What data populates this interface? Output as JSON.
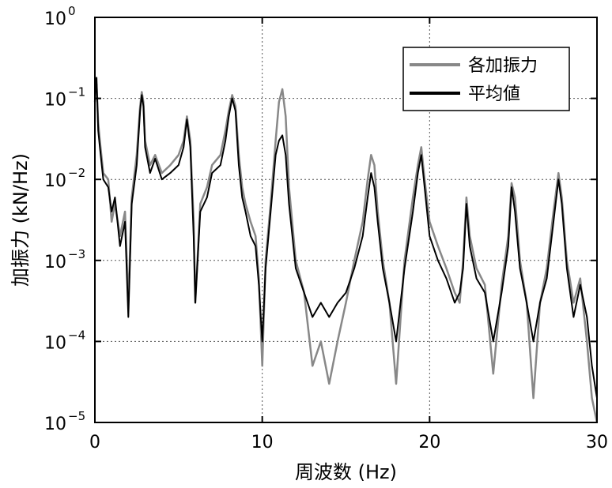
{
  "chart_data": {
    "type": "line",
    "title": "",
    "xlabel": "周波数 (Hz)",
    "ylabel": "加振力 (kN/Hz)",
    "xlim": [
      0,
      30
    ],
    "ylim": [
      1e-05,
      1
    ],
    "yscale": "log",
    "grid": true,
    "legend_position": "top-right",
    "x_ticks": [
      {
        "value": 0,
        "label": "0"
      },
      {
        "value": 10,
        "label": "10"
      },
      {
        "value": 20,
        "label": "20"
      },
      {
        "value": 30,
        "label": "30"
      }
    ],
    "y_ticks": [
      {
        "value": 1e-05,
        "base": "10",
        "exp": "−5"
      },
      {
        "value": 0.0001,
        "base": "10",
        "exp": "−4"
      },
      {
        "value": 0.001,
        "base": "10",
        "exp": "−3"
      },
      {
        "value": 0.01,
        "base": "10",
        "exp": "−2"
      },
      {
        "value": 0.1,
        "base": "10",
        "exp": "−1"
      },
      {
        "value": 1,
        "base": "10",
        "exp": "0"
      }
    ],
    "series": [
      {
        "name": "各加振力",
        "color": "#888888",
        "x": [
          0.0,
          0.1,
          0.2,
          0.3,
          0.5,
          0.8,
          1.0,
          1.2,
          1.5,
          1.8,
          2.0,
          2.2,
          2.5,
          2.7,
          2.8,
          2.9,
          3.0,
          3.3,
          3.6,
          4.0,
          4.5,
          5.0,
          5.3,
          5.5,
          5.7,
          5.9,
          6.0,
          6.3,
          6.7,
          7.0,
          7.5,
          7.8,
          8.0,
          8.2,
          8.4,
          8.6,
          8.8,
          9.0,
          9.3,
          9.6,
          9.8,
          10.0,
          10.2,
          10.5,
          10.8,
          11.0,
          11.2,
          11.4,
          11.6,
          12.0,
          12.5,
          13.0,
          13.5,
          14.0,
          14.5,
          15.0,
          15.5,
          16.0,
          16.3,
          16.5,
          16.7,
          16.9,
          17.2,
          17.6,
          18.0,
          18.5,
          19.0,
          19.3,
          19.5,
          19.7,
          20.0,
          20.5,
          21.0,
          21.5,
          21.8,
          22.0,
          22.2,
          22.4,
          22.8,
          23.3,
          23.8,
          24.3,
          24.7,
          24.9,
          25.1,
          25.4,
          25.8,
          26.2,
          26.6,
          27.0,
          27.4,
          27.7,
          27.9,
          28.2,
          28.6,
          29.0,
          29.4,
          29.7,
          30.0
        ],
        "values": [
          0.09,
          0.15,
          0.05,
          0.03,
          0.012,
          0.01,
          0.003,
          0.005,
          0.002,
          0.004,
          0.0003,
          0.006,
          0.02,
          0.08,
          0.12,
          0.09,
          0.03,
          0.015,
          0.02,
          0.012,
          0.015,
          0.02,
          0.03,
          0.06,
          0.03,
          0.003,
          0.0003,
          0.005,
          0.008,
          0.015,
          0.02,
          0.04,
          0.07,
          0.11,
          0.08,
          0.02,
          0.008,
          0.005,
          0.003,
          0.002,
          0.0006,
          5e-05,
          0.001,
          0.005,
          0.03,
          0.09,
          0.13,
          0.06,
          0.008,
          0.001,
          0.0004,
          5e-05,
          0.0001,
          3e-05,
          0.0001,
          0.0003,
          0.001,
          0.003,
          0.01,
          0.02,
          0.015,
          0.004,
          0.001,
          0.0003,
          3e-05,
          0.001,
          0.006,
          0.015,
          0.025,
          0.01,
          0.003,
          0.0015,
          0.0008,
          0.0004,
          0.0003,
          0.001,
          0.006,
          0.002,
          0.0008,
          0.0005,
          4e-05,
          0.0005,
          0.002,
          0.009,
          0.006,
          0.001,
          0.0003,
          2e-05,
          0.0003,
          0.0008,
          0.004,
          0.012,
          0.006,
          0.001,
          0.0003,
          0.0006,
          0.0001,
          2e-05,
          1e-05
        ]
      },
      {
        "name": "平均値",
        "color": "#000000",
        "x": [
          0.0,
          0.1,
          0.2,
          0.3,
          0.5,
          0.8,
          1.0,
          1.2,
          1.5,
          1.8,
          2.0,
          2.2,
          2.5,
          2.7,
          2.8,
          2.9,
          3.0,
          3.3,
          3.6,
          4.0,
          4.5,
          5.0,
          5.3,
          5.5,
          5.7,
          5.9,
          6.0,
          6.3,
          6.7,
          7.0,
          7.5,
          7.8,
          8.0,
          8.2,
          8.4,
          8.6,
          8.8,
          9.0,
          9.3,
          9.6,
          9.8,
          10.0,
          10.2,
          10.5,
          10.8,
          11.0,
          11.2,
          11.4,
          11.6,
          12.0,
          12.5,
          13.0,
          13.5,
          14.0,
          14.5,
          15.0,
          15.5,
          16.0,
          16.3,
          16.5,
          16.7,
          16.9,
          17.2,
          17.6,
          18.0,
          18.5,
          19.0,
          19.3,
          19.5,
          19.7,
          20.0,
          20.5,
          21.0,
          21.5,
          21.8,
          22.0,
          22.2,
          22.4,
          22.8,
          23.3,
          23.8,
          24.3,
          24.7,
          24.9,
          25.1,
          25.4,
          25.8,
          26.2,
          26.6,
          27.0,
          27.4,
          27.7,
          27.9,
          28.2,
          28.6,
          29.0,
          29.4,
          29.7,
          30.0
        ],
        "values": [
          0.1,
          0.18,
          0.04,
          0.025,
          0.01,
          0.008,
          0.004,
          0.006,
          0.0015,
          0.003,
          0.0002,
          0.005,
          0.015,
          0.07,
          0.11,
          0.08,
          0.025,
          0.012,
          0.018,
          0.01,
          0.012,
          0.015,
          0.025,
          0.055,
          0.025,
          0.002,
          0.0003,
          0.004,
          0.006,
          0.012,
          0.015,
          0.03,
          0.06,
          0.1,
          0.07,
          0.015,
          0.006,
          0.004,
          0.002,
          0.0015,
          0.0005,
          0.0001,
          0.0008,
          0.004,
          0.02,
          0.03,
          0.035,
          0.02,
          0.005,
          0.0008,
          0.0004,
          0.0002,
          0.0003,
          0.0002,
          0.0003,
          0.0004,
          0.0008,
          0.002,
          0.006,
          0.012,
          0.008,
          0.003,
          0.0008,
          0.0003,
          0.0001,
          0.0008,
          0.004,
          0.012,
          0.02,
          0.008,
          0.002,
          0.001,
          0.0006,
          0.0003,
          0.0004,
          0.0008,
          0.005,
          0.0015,
          0.0006,
          0.0004,
          0.0001,
          0.0004,
          0.0015,
          0.008,
          0.004,
          0.0008,
          0.0003,
          0.0001,
          0.0003,
          0.0006,
          0.003,
          0.01,
          0.005,
          0.0008,
          0.0002,
          0.0005,
          0.0002,
          5e-05,
          2e-05
        ]
      }
    ]
  }
}
